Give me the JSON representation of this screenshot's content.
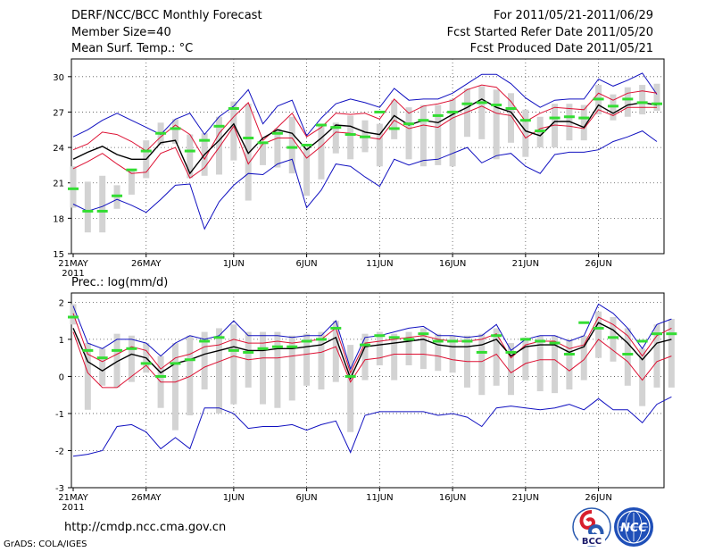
{
  "header": {
    "title": "DERF/NCC/BCC Monthly Forecast",
    "member_size": "Member Size=40",
    "variable": "Mean Surf. Temp.: °C",
    "forecast_period": "For 2011/05/21-2011/06/29",
    "start_date": "Fcst Started Refer Date 2011/05/20",
    "produced_date": "Fcst Produced Date 2011/05/21"
  },
  "footer": {
    "url": "http://cmdp.ncc.cma.gov.cn",
    "credit": "GrADS: COLA/IGES",
    "logo_bcc": "BCC",
    "logo_ncc": "NCC"
  },
  "colors": {
    "grid": "#555555",
    "envelope": "#1010c0",
    "spread": "#dd1133",
    "mean": "#000000",
    "box": "#d3d3d3",
    "median": "#33dd33"
  },
  "chart_data": [
    {
      "type": "line",
      "id": "temperature",
      "title": "Mean Surf. Temp.: °C",
      "xlabel": "",
      "ylabel": "°C",
      "ylim": [
        15,
        31.5
      ],
      "yticks": [
        15,
        18,
        21,
        24,
        27,
        30
      ],
      "x_start_label": "21MAY",
      "x_year_label": "2011",
      "x_ticks": [
        {
          "day": 0,
          "label": "21MAY"
        },
        {
          "day": 5,
          "label": "26MAY"
        },
        {
          "day": 11,
          "label": "1JUN"
        },
        {
          "day": 16,
          "label": "6JUN"
        },
        {
          "day": 21,
          "label": "11JUN"
        },
        {
          "day": 26,
          "label": "16JUN"
        },
        {
          "day": 31,
          "label": "21JUN"
        },
        {
          "day": 36,
          "label": "26JUN"
        }
      ],
      "series": [
        {
          "name": "max",
          "values": [
            24.9,
            25.5,
            26.3,
            26.9,
            26.3,
            25.7,
            25.1,
            26.4,
            26.9,
            25.1,
            26.6,
            27.5,
            28.9,
            26.0,
            27.5,
            28.0,
            25.0,
            26.5,
            27.7,
            28.1,
            27.8,
            27.4,
            29.0,
            28.0,
            28.1,
            28.1,
            28.6,
            29.4,
            30.2,
            30.2,
            29.4,
            28.2,
            27.4,
            28.0,
            28.1,
            28.1,
            29.8,
            29.2,
            29.7,
            30.3,
            28.5
          ]
        },
        {
          "name": "upper",
          "values": [
            23.8,
            24.3,
            25.3,
            25.1,
            24.5,
            23.7,
            24.9,
            25.9,
            25.1,
            23.0,
            25.2,
            26.6,
            27.8,
            24.6,
            25.7,
            26.9,
            24.9,
            25.7,
            26.9,
            26.8,
            26.9,
            26.4,
            28.1,
            26.9,
            27.5,
            27.7,
            28.0,
            28.9,
            29.3,
            29.1,
            27.9,
            26.2,
            26.9,
            27.4,
            27.3,
            27.2,
            28.6,
            28.0,
            28.6,
            28.8,
            28.6
          ]
        },
        {
          "name": "mean",
          "values": [
            23.0,
            23.6,
            24.1,
            23.4,
            23.0,
            23.0,
            24.4,
            24.6,
            21.8,
            23.4,
            24.6,
            26.0,
            23.5,
            24.8,
            25.5,
            25.2,
            23.8,
            24.8,
            25.9,
            25.8,
            25.3,
            25.1,
            26.7,
            25.9,
            26.3,
            26.1,
            26.8,
            27.4,
            28.1,
            27.4,
            27.0,
            25.4,
            25.0,
            26.2,
            26.2,
            25.7,
            27.6,
            26.9,
            27.6,
            27.8,
            27.6
          ]
        },
        {
          "name": "lower",
          "values": [
            22.2,
            22.8,
            23.5,
            22.6,
            21.8,
            21.9,
            23.5,
            24.0,
            21.4,
            22.3,
            24.0,
            25.8,
            22.6,
            24.3,
            24.8,
            24.8,
            23.1,
            24.1,
            25.3,
            25.2,
            24.9,
            24.7,
            26.3,
            25.6,
            25.9,
            25.7,
            26.5,
            27.0,
            27.5,
            26.9,
            26.7,
            24.8,
            25.6,
            25.9,
            25.8,
            25.6,
            27.2,
            26.7,
            27.4,
            27.4,
            27.4
          ]
        },
        {
          "name": "min",
          "values": [
            19.2,
            18.6,
            19.0,
            19.6,
            19.1,
            18.5,
            19.6,
            20.8,
            20.9,
            17.1,
            19.4,
            20.8,
            21.8,
            21.7,
            22.6,
            23.0,
            18.9,
            20.4,
            22.6,
            22.4,
            21.5,
            20.7,
            23.0,
            22.5,
            22.9,
            23.0,
            23.5,
            24.0,
            22.7,
            23.3,
            23.5,
            22.4,
            21.8,
            23.4,
            23.6,
            23.6,
            23.8,
            24.5,
            24.9,
            25.4,
            24.5
          ]
        },
        {
          "name": "box_high",
          "values": [
            22.4,
            21.1,
            21.6,
            20.8,
            22.0,
            24.6,
            26.1,
            26.4,
            25.1,
            25.2,
            26.6,
            27.9,
            27.7,
            24.4,
            25.6,
            26.6,
            24.0,
            25.8,
            26.1,
            26.7,
            26.3,
            26.0,
            28.0,
            27.4,
            27.6,
            27.6,
            28.1,
            29.0,
            29.2,
            28.9,
            28.6,
            27.2,
            26.6,
            27.7,
            27.7,
            27.6,
            29.3,
            28.5,
            29.1,
            29.3,
            29.4
          ]
        },
        {
          "name": "box_low",
          "values": [
            18.9,
            16.8,
            16.8,
            18.8,
            20.0,
            21.4,
            24.2,
            24.3,
            21.4,
            21.6,
            21.7,
            22.9,
            19.5,
            22.5,
            22.3,
            21.8,
            19.9,
            21.3,
            23.5,
            23.0,
            23.6,
            22.4,
            24.7,
            23.0,
            22.4,
            22.5,
            22.4,
            24.9,
            24.7,
            23.0,
            24.4,
            23.2,
            24.0,
            24.0,
            24.6,
            24.6,
            26.8,
            26.3,
            26.6,
            26.8,
            27.1
          ]
        },
        {
          "name": "median",
          "values": [
            20.5,
            18.6,
            18.6,
            19.9,
            22.1,
            23.7,
            25.2,
            25.6,
            23.7,
            24.6,
            25.8,
            27.3,
            24.8,
            24.4,
            25.2,
            24.0,
            24.2,
            25.9,
            25.7,
            25.1,
            24.9,
            27.0,
            25.6,
            26.0,
            26.3,
            26.7,
            27.0,
            27.7,
            27.8,
            27.6,
            27.3,
            26.3,
            25.4,
            26.5,
            26.6,
            26.5,
            28.1,
            27.5,
            28.1,
            27.8,
            27.7
          ]
        }
      ]
    },
    {
      "type": "line",
      "id": "precipitation",
      "title": "Prec.: log(mm/d)",
      "xlabel": "",
      "ylabel": "log(mm/d)",
      "ylim": [
        -3,
        2.25
      ],
      "yticks": [
        -3,
        -2,
        -1,
        0,
        1,
        2
      ],
      "x_start_label": "21MAY",
      "x_year_label": "2011",
      "x_ticks": [
        {
          "day": 0,
          "label": "21MAY"
        },
        {
          "day": 5,
          "label": "26MAY"
        },
        {
          "day": 11,
          "label": "1JUN"
        },
        {
          "day": 16,
          "label": "6JUN"
        },
        {
          "day": 21,
          "label": "11JUN"
        },
        {
          "day": 26,
          "label": "16JUN"
        },
        {
          "day": 31,
          "label": "21JUN"
        },
        {
          "day": 36,
          "label": "26JUN"
        }
      ],
      "series": [
        {
          "name": "max",
          "values": [
            1.9,
            0.9,
            0.75,
            1.0,
            1.0,
            0.9,
            0.55,
            0.9,
            1.1,
            1.0,
            1.1,
            1.5,
            1.1,
            1.1,
            1.1,
            1.05,
            1.1,
            1.1,
            1.5,
            0.2,
            1.05,
            1.1,
            1.2,
            1.3,
            1.35,
            1.1,
            1.1,
            1.05,
            1.1,
            1.4,
            0.7,
            1.0,
            1.1,
            1.1,
            0.95,
            1.1,
            1.95,
            1.7,
            1.3,
            0.75,
            1.4,
            1.55
          ]
        },
        {
          "name": "upper",
          "values": [
            1.7,
            0.6,
            0.4,
            0.6,
            0.8,
            0.7,
            0.2,
            0.5,
            0.6,
            0.8,
            0.85,
            1.0,
            0.9,
            0.9,
            0.95,
            0.9,
            0.95,
            1.0,
            1.3,
            0.1,
            0.9,
            0.95,
            1.0,
            1.05,
            1.1,
            1.0,
            0.95,
            0.95,
            1.0,
            1.15,
            0.5,
            0.85,
            0.95,
            0.95,
            0.75,
            0.85,
            1.6,
            1.4,
            1.1,
            0.55,
            1.1,
            1.3
          ]
        },
        {
          "name": "mean",
          "values": [
            1.3,
            0.4,
            0.15,
            0.4,
            0.6,
            0.5,
            0.1,
            0.35,
            0.45,
            0.6,
            0.7,
            0.8,
            0.7,
            0.7,
            0.75,
            0.75,
            0.8,
            0.85,
            1.05,
            -0.05,
            0.8,
            0.85,
            0.9,
            0.95,
            1.0,
            0.85,
            0.8,
            0.8,
            0.85,
            1.0,
            0.55,
            0.8,
            0.85,
            0.85,
            0.65,
            0.8,
            1.45,
            1.25,
            0.9,
            0.45,
            0.9,
            1.0
          ]
        },
        {
          "name": "lower",
          "values": [
            1.2,
            0.1,
            -0.3,
            -0.3,
            0.0,
            0.3,
            -0.15,
            -0.15,
            0.0,
            0.25,
            0.4,
            0.55,
            0.45,
            0.5,
            0.5,
            0.55,
            0.6,
            0.65,
            0.8,
            -0.15,
            0.45,
            0.5,
            0.6,
            0.6,
            0.6,
            0.55,
            0.45,
            0.4,
            0.4,
            0.6,
            0.1,
            0.35,
            0.45,
            0.45,
            0.15,
            0.45,
            1.0,
            0.7,
            0.4,
            -0.1,
            0.4,
            0.55
          ]
        },
        {
          "name": "min",
          "values": [
            -2.15,
            -2.1,
            -2.0,
            -1.35,
            -1.3,
            -1.5,
            -1.95,
            -1.65,
            -1.95,
            -0.85,
            -0.85,
            -1.0,
            -1.4,
            -1.35,
            -1.35,
            -1.3,
            -1.45,
            -1.3,
            -1.2,
            -2.05,
            -1.05,
            -0.95,
            -0.95,
            -0.95,
            -0.95,
            -1.05,
            -1.0,
            -1.1,
            -1.35,
            -0.85,
            -0.8,
            -0.85,
            -0.9,
            -0.85,
            -0.75,
            -0.9,
            -0.6,
            -0.9,
            -0.9,
            -1.25,
            -0.75,
            -0.55
          ]
        },
        {
          "name": "box_high",
          "values": [
            1.95,
            0.9,
            0.75,
            1.15,
            1.1,
            0.9,
            0.55,
            0.9,
            1.1,
            1.2,
            1.3,
            1.4,
            1.2,
            1.2,
            1.2,
            1.1,
            1.15,
            1.2,
            1.5,
            0.85,
            1.15,
            1.2,
            1.15,
            1.2,
            1.3,
            1.15,
            1.1,
            1.1,
            1.15,
            1.3,
            0.9,
            1.05,
            1.1,
            1.1,
            1.0,
            1.1,
            1.75,
            1.6,
            1.3,
            0.75,
            1.4,
            1.55
          ]
        },
        {
          "name": "box_low",
          "values": [
            1.4,
            -0.9,
            -0.25,
            -0.3,
            -0.15,
            0.1,
            -0.85,
            -1.45,
            -1.05,
            -0.35,
            -1.0,
            -0.75,
            -0.3,
            -0.75,
            -0.85,
            -0.65,
            -0.25,
            -0.35,
            -0.15,
            -1.5,
            -0.1,
            0.3,
            -0.1,
            0.3,
            0.2,
            0.15,
            0.1,
            -0.3,
            -0.5,
            -0.25,
            -0.5,
            -0.1,
            -0.4,
            -0.45,
            -0.35,
            -0.1,
            0.5,
            0.4,
            -0.25,
            -0.8,
            -0.3,
            -0.3
          ]
        },
        {
          "name": "median",
          "values": [
            1.6,
            0.7,
            0.5,
            0.7,
            0.75,
            0.35,
            0.0,
            0.35,
            0.45,
            0.95,
            1.05,
            0.7,
            0.65,
            0.75,
            0.8,
            0.8,
            0.95,
            1.0,
            1.3,
            0.0,
            0.85,
            1.1,
            1.05,
            1.0,
            1.15,
            0.95,
            0.95,
            0.95,
            0.65,
            1.1,
            0.65,
            1.0,
            0.95,
            0.9,
            0.6,
            1.45,
            1.3,
            1.05,
            0.6,
            0.95,
            1.15,
            1.15
          ]
        }
      ]
    }
  ]
}
